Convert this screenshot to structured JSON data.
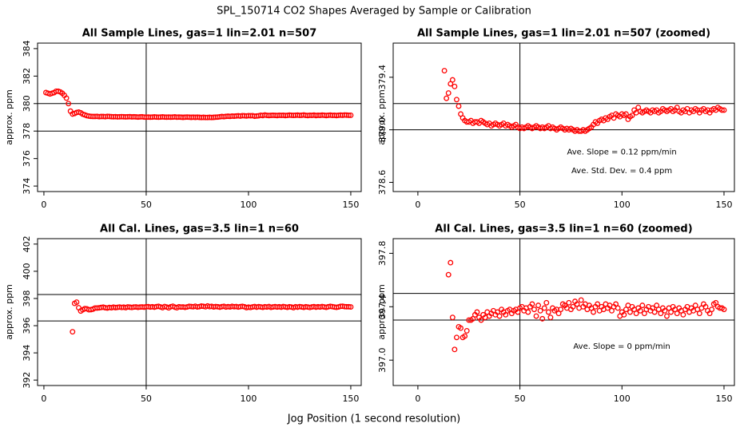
{
  "title": "SPL_150714  CO2 Shapes Averaged by Sample or Calibration",
  "xlabel": "Jog Position (1 second resolution)",
  "chart_data": [
    {
      "type": "scatter",
      "title": "All Sample Lines, gas=1 lin=2.01 n=507",
      "ylabel": "approx. ppm",
      "color": "#ff0000",
      "xlim": [
        -3.1,
        155.1
      ],
      "ylim": [
        373.6,
        384.4
      ],
      "xticks": [
        0,
        50,
        100,
        150
      ],
      "yticks": [
        374,
        376,
        378,
        380,
        382,
        384
      ],
      "hlines": [
        380,
        378
      ],
      "vlines": [
        50
      ],
      "x": [
        1,
        2,
        3,
        4,
        5,
        6,
        7,
        8,
        9,
        10,
        11,
        12,
        13,
        14,
        15,
        16,
        17,
        18,
        19,
        20,
        21,
        22,
        23,
        24,
        25,
        26,
        27,
        28,
        29,
        30,
        31,
        32,
        33,
        34,
        35,
        36,
        37,
        38,
        39,
        40,
        41,
        42,
        43,
        44,
        45,
        46,
        47,
        48,
        49,
        50,
        51,
        52,
        53,
        54,
        55,
        56,
        57,
        58,
        59,
        60,
        61,
        62,
        63,
        64,
        65,
        66,
        67,
        68,
        69,
        70,
        71,
        72,
        73,
        74,
        75,
        76,
        77,
        78,
        79,
        80,
        81,
        82,
        83,
        84,
        85,
        86,
        87,
        88,
        89,
        90,
        91,
        92,
        93,
        94,
        95,
        96,
        97,
        98,
        99,
        100,
        101,
        102,
        103,
        104,
        105,
        106,
        107,
        108,
        109,
        110,
        111,
        112,
        113,
        114,
        115,
        116,
        117,
        118,
        119,
        120,
        121,
        122,
        123,
        124,
        125,
        126,
        127,
        128,
        129,
        130,
        131,
        132,
        133,
        134,
        135,
        136,
        137,
        138,
        139,
        140,
        141,
        142,
        143,
        144,
        145,
        146,
        147,
        148,
        149,
        150
      ],
      "values": [
        380.8,
        380.75,
        380.7,
        380.75,
        380.8,
        380.9,
        380.9,
        380.85,
        380.75,
        380.6,
        380.4,
        380.0,
        379.45,
        379.24,
        379.28,
        379.35,
        379.38,
        379.33,
        379.23,
        379.18,
        379.12,
        379.09,
        379.07,
        379.06,
        379.06,
        379.07,
        379.05,
        379.06,
        379.06,
        379.05,
        379.07,
        379.06,
        379.05,
        379.04,
        379.05,
        379.03,
        379.04,
        379.05,
        379.04,
        379.03,
        379.04,
        379.05,
        379.03,
        379.04,
        379.03,
        379.02,
        379.03,
        379.04,
        379.02,
        379.01,
        379.02,
        379.01,
        379.02,
        379.03,
        379.02,
        379.01,
        379.02,
        379.03,
        379.02,
        379.01,
        379.02,
        379.01,
        379.02,
        379.03,
        379.01,
        379.02,
        379.01,
        379,
        379.01,
        379.02,
        379.01,
        379,
        379.01,
        379,
        379.01,
        379,
        378.99,
        379,
        378.99,
        378.99,
        379,
        378.99,
        379,
        379.01,
        379.02,
        379.04,
        379.06,
        379.05,
        379.07,
        379.08,
        379.07,
        379.09,
        379.08,
        379.1,
        379.11,
        379.09,
        379.12,
        379.11,
        379.1,
        379.12,
        379.11,
        379.12,
        379.08,
        379.1,
        379.11,
        379.15,
        379.13,
        379.17,
        379.14,
        379.13,
        379.14,
        379.15,
        379.14,
        379.13,
        379.15,
        379.14,
        379.15,
        379.13,
        379.14,
        379.16,
        379.15,
        379.14,
        379.15,
        379.16,
        379.14,
        379.15,
        379.17,
        379.14,
        379.13,
        379.15,
        379.14,
        379.16,
        379.13,
        379.15,
        379.14,
        379.16,
        379.15,
        379.13,
        379.15,
        379.16,
        379.14,
        379.15,
        379.13,
        379.15,
        379.16,
        379.15,
        379.17,
        379.16,
        379.15,
        379.15
      ]
    },
    {
      "type": "scatter",
      "title": "All Sample Lines, gas=1 lin=2.01 n=507 (zoomed)",
      "ylabel": "approx. ppm",
      "color": "#ff0000",
      "xlim": [
        -12.1,
        155.1
      ],
      "ylim": [
        378.53,
        379.66
      ],
      "xticks": [
        0,
        50,
        100,
        150
      ],
      "yticks": [
        378.6,
        {
          "value": 379,
          "label": "379.0"
        },
        379.4
      ],
      "hlines": [
        379.2,
        379
      ],
      "vlines": [
        50
      ],
      "annotations": [
        "Ave. Slope =  0.12  ppm/min",
        "Ave. Std. Dev. =  0.4  ppm"
      ],
      "x": [
        13,
        14,
        15,
        16,
        17,
        18,
        19,
        20,
        21,
        22,
        23,
        24,
        25,
        26,
        27,
        28,
        29,
        30,
        31,
        32,
        33,
        34,
        35,
        36,
        37,
        38,
        39,
        40,
        41,
        42,
        43,
        44,
        45,
        46,
        47,
        48,
        49,
        50,
        51,
        52,
        53,
        54,
        55,
        56,
        57,
        58,
        59,
        60,
        61,
        62,
        63,
        64,
        65,
        66,
        67,
        68,
        69,
        70,
        71,
        72,
        73,
        74,
        75,
        76,
        77,
        78,
        79,
        80,
        81,
        82,
        83,
        84,
        85,
        86,
        87,
        88,
        89,
        90,
        91,
        92,
        93,
        94,
        95,
        96,
        97,
        98,
        99,
        100,
        101,
        102,
        103,
        104,
        105,
        106,
        107,
        108,
        109,
        110,
        111,
        112,
        113,
        114,
        115,
        116,
        117,
        118,
        119,
        120,
        121,
        122,
        123,
        124,
        125,
        126,
        127,
        128,
        129,
        130,
        131,
        132,
        133,
        134,
        135,
        136,
        137,
        138,
        139,
        140,
        141,
        142,
        143,
        144,
        145,
        146,
        147,
        148,
        149,
        150
      ],
      "values": [
        379.45,
        379.24,
        379.28,
        379.35,
        379.38,
        379.33,
        379.23,
        379.18,
        379.12,
        379.09,
        379.07,
        379.06,
        379.06,
        379.07,
        379.05,
        379.06,
        379.06,
        379.05,
        379.07,
        379.06,
        379.05,
        379.04,
        379.05,
        379.03,
        379.04,
        379.05,
        379.04,
        379.03,
        379.04,
        379.05,
        379.03,
        379.04,
        379.03,
        379.02,
        379.03,
        379.04,
        379.02,
        379.01,
        379.02,
        379.01,
        379.02,
        379.03,
        379.02,
        379.01,
        379.02,
        379.03,
        379.02,
        379.01,
        379.02,
        379.01,
        379.02,
        379.03,
        379.01,
        379.02,
        379.01,
        379,
        379.01,
        379.02,
        379.01,
        379,
        379.01,
        379,
        379.01,
        379,
        378.99,
        379,
        378.99,
        378.99,
        379,
        378.99,
        379,
        379.01,
        379.02,
        379.04,
        379.06,
        379.05,
        379.07,
        379.08,
        379.07,
        379.09,
        379.08,
        379.1,
        379.11,
        379.09,
        379.12,
        379.11,
        379.1,
        379.12,
        379.11,
        379.12,
        379.08,
        379.1,
        379.11,
        379.15,
        379.13,
        379.17,
        379.14,
        379.13,
        379.14,
        379.15,
        379.14,
        379.13,
        379.15,
        379.14,
        379.15,
        379.13,
        379.14,
        379.16,
        379.15,
        379.14,
        379.15,
        379.16,
        379.14,
        379.15,
        379.17,
        379.14,
        379.13,
        379.15,
        379.14,
        379.16,
        379.13,
        379.15,
        379.14,
        379.16,
        379.15,
        379.13,
        379.15,
        379.16,
        379.14,
        379.15,
        379.13,
        379.15,
        379.16,
        379.15,
        379.17,
        379.16,
        379.15,
        379.15
      ]
    },
    {
      "type": "scatter",
      "title": "All Cal. Lines, gas=3.5 lin=1 n=60",
      "ylabel": "approx. ppm",
      "color": "#ff0000",
      "xlim": [
        -3.1,
        155.1
      ],
      "ylim": [
        391.6,
        402.4
      ],
      "xticks": [
        0,
        50,
        100,
        150
      ],
      "yticks": [
        392,
        394,
        396,
        398,
        400,
        402
      ],
      "hlines": [
        398.29,
        396.35
      ],
      "vlines": [
        50
      ],
      "x": [
        14,
        15,
        16,
        17,
        18,
        19,
        20,
        21,
        22,
        23,
        24,
        25,
        26,
        27,
        28,
        29,
        30,
        31,
        32,
        33,
        34,
        35,
        36,
        37,
        38,
        39,
        40,
        41,
        42,
        43,
        44,
        45,
        46,
        47,
        48,
        49,
        50,
        51,
        52,
        53,
        54,
        55,
        56,
        57,
        58,
        59,
        60,
        61,
        62,
        63,
        64,
        65,
        66,
        67,
        68,
        69,
        70,
        71,
        72,
        73,
        74,
        75,
        76,
        77,
        78,
        79,
        80,
        81,
        82,
        83,
        84,
        85,
        86,
        87,
        88,
        89,
        90,
        91,
        92,
        93,
        94,
        95,
        96,
        97,
        98,
        99,
        100,
        101,
        102,
        103,
        104,
        105,
        106,
        107,
        108,
        109,
        110,
        111,
        112,
        113,
        114,
        115,
        116,
        117,
        118,
        119,
        120,
        121,
        122,
        123,
        124,
        125,
        126,
        127,
        128,
        129,
        130,
        131,
        132,
        133,
        134,
        135,
        136,
        137,
        138,
        139,
        140,
        141,
        142,
        143,
        144,
        145,
        146,
        147,
        148,
        149,
        150
      ],
      "values": [
        395.55,
        397.64,
        397.73,
        397.32,
        397.08,
        397.17,
        397.25,
        397.24,
        397.17,
        397.18,
        397.22,
        397.3,
        397.3,
        397.31,
        397.34,
        397.36,
        397.32,
        397.3,
        397.34,
        397.32,
        397.36,
        397.33,
        397.35,
        397.37,
        397.34,
        397.36,
        397.33,
        397.38,
        397.36,
        397.34,
        397.37,
        397.38,
        397.35,
        397.37,
        397.38,
        397.36,
        397.39,
        397.4,
        397.37,
        397.39,
        397.36,
        397.4,
        397.42,
        397.38,
        397.33,
        397.41,
        397.37,
        397.31,
        397.39,
        397.43,
        397.36,
        397.32,
        397.39,
        397.37,
        397.38,
        397.35,
        397.38,
        397.42,
        397.41,
        397.39,
        397.43,
        397.38,
        397.4,
        397.44,
        397.42,
        397.39,
        397.45,
        397.4,
        397.42,
        397.38,
        397.41,
        397.39,
        397.36,
        397.4,
        397.42,
        397.37,
        397.4,
        397.38,
        397.42,
        397.39,
        397.41,
        397.37,
        397.4,
        397.42,
        397.39,
        397.33,
        397.36,
        397.34,
        397.38,
        397.41,
        397.36,
        397.4,
        397.38,
        397.35,
        397.39,
        397.37,
        397.41,
        397.35,
        397.38,
        397.4,
        397.37,
        397.39,
        397.36,
        397.41,
        397.38,
        397.35,
        397.39,
        397.37,
        397.33,
        397.39,
        397.36,
        397.4,
        397.38,
        397.35,
        397.39,
        397.37,
        397.34,
        397.38,
        397.4,
        397.36,
        397.39,
        397.37,
        397.41,
        397.38,
        397.35,
        397.39,
        397.42,
        397.4,
        397.37,
        397.35,
        397.38,
        397.42,
        397.43,
        397.4,
        397.39,
        397.39,
        397.38
      ]
    },
    {
      "type": "scatter",
      "title": "All Cal. Lines, gas=3.5 lin=1 n=60 (zoomed)",
      "ylabel": "approx. ppm",
      "color": "#ff0000",
      "xlim": [
        -12.1,
        155.1
      ],
      "ylim": [
        396.81,
        397.91
      ],
      "xticks": [
        0,
        50,
        100,
        150
      ],
      "yticks": [
        {
          "value": 397,
          "label": "397.0"
        },
        397.4,
        397.8
      ],
      "hlines": [
        397.5,
        397.3
      ],
      "vlines": [
        50
      ],
      "annotations": [
        "Ave. Slope =  0  ppm/min"
      ],
      "x": [
        15,
        16,
        17,
        18,
        19,
        20,
        21,
        22,
        23,
        24,
        25,
        26,
        27,
        28,
        29,
        30,
        31,
        32,
        33,
        34,
        35,
        36,
        37,
        38,
        39,
        40,
        41,
        42,
        43,
        44,
        45,
        46,
        47,
        48,
        49,
        50,
        51,
        52,
        53,
        54,
        55,
        56,
        57,
        58,
        59,
        60,
        61,
        62,
        63,
        64,
        65,
        66,
        67,
        68,
        69,
        70,
        71,
        72,
        73,
        74,
        75,
        76,
        77,
        78,
        79,
        80,
        81,
        82,
        83,
        84,
        85,
        86,
        87,
        88,
        89,
        90,
        91,
        92,
        93,
        94,
        95,
        96,
        97,
        98,
        99,
        100,
        101,
        102,
        103,
        104,
        105,
        106,
        107,
        108,
        109,
        110,
        111,
        112,
        113,
        114,
        115,
        116,
        117,
        118,
        119,
        120,
        121,
        122,
        123,
        124,
        125,
        126,
        127,
        128,
        129,
        130,
        131,
        132,
        133,
        134,
        135,
        136,
        137,
        138,
        139,
        140,
        141,
        142,
        143,
        144,
        145,
        146,
        147,
        148,
        149,
        150
      ],
      "values": [
        397.64,
        397.73,
        397.32,
        397.08,
        397.17,
        397.25,
        397.24,
        397.17,
        397.18,
        397.22,
        397.3,
        397.3,
        397.31,
        397.34,
        397.36,
        397.32,
        397.3,
        397.34,
        397.32,
        397.36,
        397.33,
        397.35,
        397.37,
        397.34,
        397.36,
        397.33,
        397.38,
        397.36,
        397.34,
        397.37,
        397.38,
        397.35,
        397.37,
        397.38,
        397.36,
        397.39,
        397.4,
        397.37,
        397.39,
        397.36,
        397.4,
        397.42,
        397.38,
        397.33,
        397.41,
        397.37,
        397.31,
        397.39,
        397.43,
        397.36,
        397.32,
        397.39,
        397.37,
        397.38,
        397.35,
        397.38,
        397.42,
        397.41,
        397.39,
        397.43,
        397.38,
        397.4,
        397.44,
        397.42,
        397.39,
        397.45,
        397.4,
        397.42,
        397.38,
        397.41,
        397.39,
        397.36,
        397.4,
        397.42,
        397.37,
        397.4,
        397.38,
        397.42,
        397.39,
        397.41,
        397.37,
        397.4,
        397.42,
        397.39,
        397.33,
        397.36,
        397.34,
        397.38,
        397.41,
        397.36,
        397.4,
        397.38,
        397.35,
        397.39,
        397.37,
        397.41,
        397.35,
        397.38,
        397.4,
        397.37,
        397.39,
        397.36,
        397.41,
        397.38,
        397.35,
        397.39,
        397.37,
        397.33,
        397.39,
        397.36,
        397.4,
        397.38,
        397.35,
        397.39,
        397.37,
        397.34,
        397.38,
        397.4,
        397.36,
        397.39,
        397.37,
        397.41,
        397.38,
        397.35,
        397.39,
        397.42,
        397.4,
        397.37,
        397.35,
        397.38,
        397.42,
        397.43,
        397.4,
        397.39,
        397.39,
        397.38
      ]
    }
  ]
}
